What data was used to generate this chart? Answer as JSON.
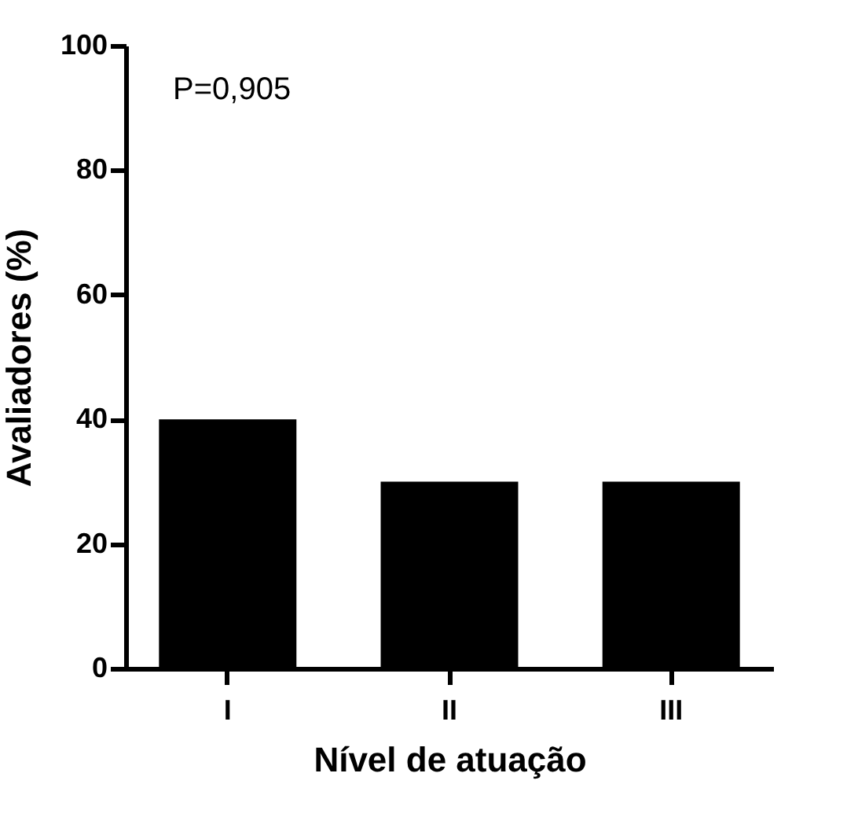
{
  "chart_data": {
    "type": "bar",
    "xlabel": "Nível de atuação",
    "ylabel": "Avaliadores (%)",
    "categories": [
      "I",
      "II",
      "III"
    ],
    "values": [
      40,
      30,
      30
    ],
    "color": "#000000",
    "ylim": [
      0,
      100
    ],
    "yticks": [
      0,
      20,
      40,
      60,
      80,
      100
    ],
    "grid": false,
    "annotations": [
      "P=0,905"
    ]
  }
}
